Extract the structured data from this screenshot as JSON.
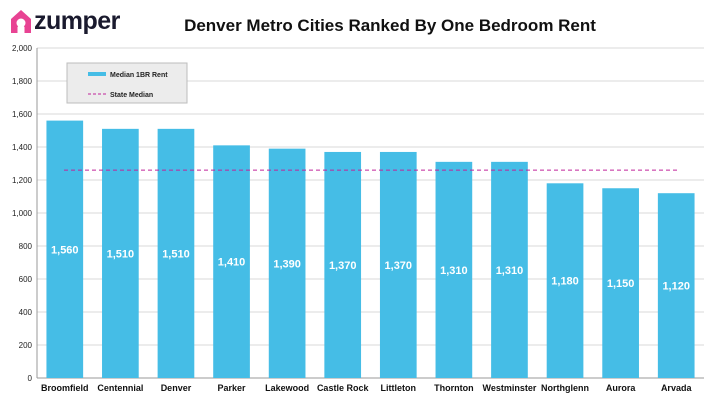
{
  "brand": {
    "name": "zumper",
    "color": "#1a1a2e",
    "icon": "house-icon",
    "icon_color": "#e84393"
  },
  "colors": {
    "bar": "#45bde6",
    "state_median_line": "#c0249a",
    "legend_bg": "#ececec"
  },
  "chart_data": {
    "type": "bar",
    "title": "Denver Metro Cities Ranked By One Bedroom Rent",
    "categories": [
      "Broomfield",
      "Centennial",
      "Denver",
      "Parker",
      "Lakewood",
      "Castle Rock",
      "Littleton",
      "Thornton",
      "Westminster",
      "Northglenn",
      "Aurora",
      "Arvada"
    ],
    "series": [
      {
        "name": "Median 1BR Rent",
        "values": [
          1560,
          1510,
          1510,
          1410,
          1390,
          1370,
          1370,
          1310,
          1310,
          1180,
          1150,
          1120
        ]
      }
    ],
    "data_labels": [
      "1,560",
      "1,510",
      "1,510",
      "1,410",
      "1,390",
      "1,370",
      "1,370",
      "1,310",
      "1,310",
      "1,180",
      "1,150",
      "1,120"
    ],
    "reference_line": {
      "name": "State Median",
      "value": 1260
    },
    "ylim": [
      0,
      2000
    ],
    "yticks": [
      0,
      200,
      400,
      600,
      800,
      1000,
      1200,
      1400,
      1600,
      1800,
      2000
    ],
    "ytick_labels": [
      "0",
      "200",
      "400",
      "600",
      "800",
      "1,000",
      "1,200",
      "1,400",
      "1,600",
      "1,800",
      "2,000"
    ],
    "xlabel": "",
    "ylabel": "",
    "grid": true,
    "legend_position": "top-left"
  }
}
